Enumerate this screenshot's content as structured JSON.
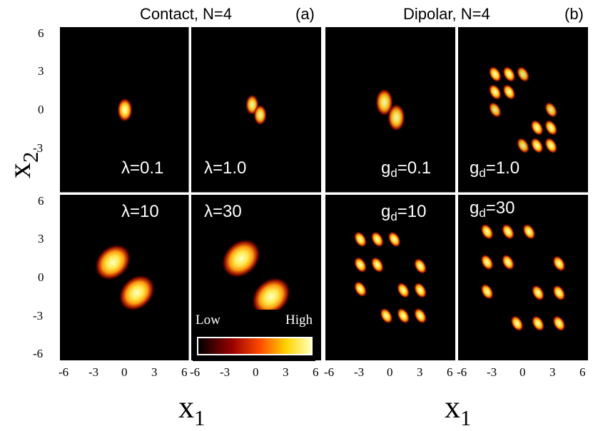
{
  "panels": [
    {
      "title": "Contact, N=4",
      "letter": "(a)"
    },
    {
      "title": "Dipolar, N=4",
      "letter": "(b)"
    }
  ],
  "axes": {
    "xlabel": {
      "main": "x",
      "sub": "1"
    },
    "ylabel": {
      "main": "x",
      "sub": "2"
    },
    "yticks": [
      "6",
      "3",
      "0",
      "-3",
      "-6"
    ],
    "xticks": [
      "-6",
      "-3",
      "0",
      "3",
      "6"
    ]
  },
  "colorbar": {
    "low": "Low",
    "high": "High"
  },
  "colors": {
    "low": "#000000",
    "mid": "#b40000",
    "high": "#ffff90"
  },
  "chart_data": {
    "type": "heatmap",
    "xlim": [
      -6.5,
      6.5
    ],
    "ylim": [
      -6.5,
      6.5
    ],
    "subplots": [
      {
        "param": "λ=0.1",
        "symbol": "λ",
        "value": "0.1",
        "blobs": [
          [
            0,
            0,
            0.7,
            1
          ]
        ]
      },
      {
        "param": "λ=1.0",
        "symbol": "λ",
        "value": "1.0",
        "blobs": [
          [
            -0.4,
            0.4,
            0.6,
            0.95
          ],
          [
            0.4,
            -0.4,
            0.6,
            0.95
          ]
        ]
      },
      {
        "param": "gd=0.1",
        "symbol": "g",
        "sub": "d",
        "value": "0.1",
        "blobs": [
          [
            -0.6,
            0.6,
            0.8,
            0.95
          ],
          [
            0.6,
            -0.6,
            0.8,
            0.95
          ]
        ]
      },
      {
        "param": "gd=1.0",
        "symbol": "g",
        "sub": "d",
        "value": "1.0",
        "blobs": [
          [
            -2.8,
            2.8,
            0.5,
            1
          ],
          [
            -1.4,
            2.8,
            0.5,
            1
          ],
          [
            0,
            2.8,
            0.5,
            0.9
          ],
          [
            -2.8,
            1.4,
            0.5,
            1
          ],
          [
            -1.4,
            1.4,
            0.5,
            1
          ],
          [
            -2.8,
            0,
            0.5,
            0.9
          ],
          [
            2.8,
            -2.8,
            0.5,
            1
          ],
          [
            1.4,
            -2.8,
            0.5,
            1
          ],
          [
            0,
            -2.8,
            0.5,
            0.9
          ],
          [
            2.8,
            -1.4,
            0.5,
            1
          ],
          [
            1.4,
            -1.4,
            0.5,
            1
          ],
          [
            2.8,
            0,
            0.5,
            0.9
          ]
        ]
      },
      {
        "param": "λ=10",
        "symbol": "λ",
        "value": "10",
        "blobs": [
          [
            -1.2,
            1.2,
            1.3,
            1
          ],
          [
            1.2,
            -1.2,
            1.3,
            1
          ]
        ]
      },
      {
        "param": "λ=30",
        "symbol": "λ",
        "value": "30",
        "blobs": [
          [
            -1.5,
            1.5,
            1.4,
            1
          ],
          [
            1.5,
            -1.5,
            1.4,
            1
          ]
        ]
      },
      {
        "param": "gd=10",
        "symbol": "g",
        "sub": "d",
        "value": "10",
        "blobs": [
          [
            -3,
            3,
            0.5,
            1
          ],
          [
            -1.3,
            3,
            0.5,
            1
          ],
          [
            0.4,
            3,
            0.5,
            1
          ],
          [
            -3,
            1,
            0.5,
            1
          ],
          [
            -1.3,
            1,
            0.5,
            1
          ],
          [
            -3,
            -0.9,
            0.5,
            1
          ],
          [
            3,
            -3,
            0.5,
            1
          ],
          [
            1.3,
            -3,
            0.5,
            1
          ],
          [
            -0.4,
            -3,
            0.5,
            1
          ],
          [
            3,
            -1,
            0.5,
            1
          ],
          [
            1.3,
            -1,
            0.5,
            1
          ],
          [
            3,
            0.9,
            0.5,
            1
          ]
        ]
      },
      {
        "param": "gd=30",
        "symbol": "g",
        "sub": "d",
        "value": "30",
        "blobs": [
          [
            -3.6,
            3.6,
            0.5,
            1
          ],
          [
            -1.5,
            3.6,
            0.5,
            1
          ],
          [
            0.6,
            3.6,
            0.5,
            1
          ],
          [
            -3.6,
            1.2,
            0.5,
            1
          ],
          [
            -1.5,
            1.2,
            0.5,
            1
          ],
          [
            -3.6,
            -1.1,
            0.5,
            1
          ],
          [
            3.6,
            -3.6,
            0.5,
            1
          ],
          [
            1.5,
            -3.6,
            0.5,
            1
          ],
          [
            -0.6,
            -3.6,
            0.5,
            1
          ],
          [
            3.6,
            -1.2,
            0.5,
            1
          ],
          [
            1.5,
            -1.2,
            0.5,
            1
          ],
          [
            3.6,
            1.1,
            0.5,
            1
          ]
        ]
      }
    ]
  }
}
